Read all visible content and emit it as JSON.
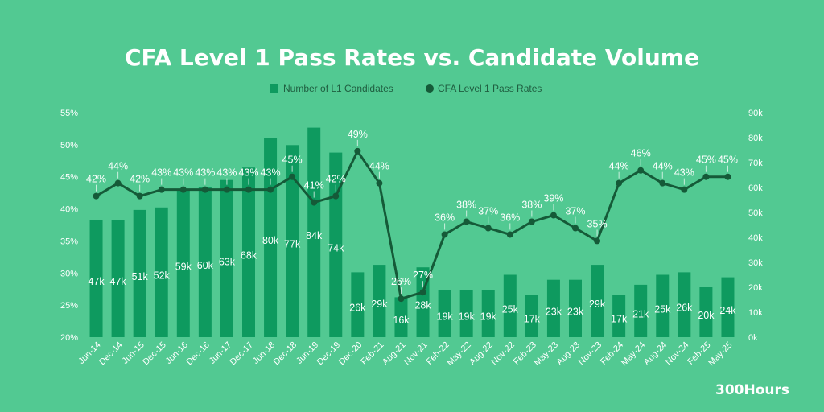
{
  "chart_data": {
    "type": "bar",
    "title": "CFA Level 1 Pass Rates vs. Candidate Volume",
    "categories": [
      "Jun-14",
      "Dec-14",
      "Jun-15",
      "Dec-15",
      "Jun-16",
      "Dec-16",
      "Jun-17",
      "Dec-17",
      "Jun-18",
      "Dec-18",
      "Jun-19",
      "Dec-19",
      "Dec-20",
      "Feb-21",
      "Aug-21",
      "Nov-21",
      "Feb-22",
      "May-22",
      "Aug-22",
      "Nov-22",
      "Feb-23",
      "May-23",
      "Aug-23",
      "Nov-23",
      "Feb-24",
      "May-24",
      "Aug-24",
      "Nov-24",
      "Feb-25",
      "May-25"
    ],
    "series": [
      {
        "name": "Number of L1 Candidates",
        "type": "bar",
        "axis": "right",
        "values": [
          47,
          47,
          51,
          52,
          59,
          60,
          63,
          68,
          80,
          77,
          84,
          74,
          26,
          29,
          16,
          28,
          19,
          19,
          19,
          25,
          17,
          23,
          23,
          29,
          17,
          21,
          25,
          26,
          20,
          24
        ],
        "labels": [
          "47k",
          "47k",
          "51k",
          "52k",
          "59k",
          "60k",
          "63k",
          "68k",
          "80k",
          "77k",
          "84k",
          "74k",
          "26k",
          "29k",
          "16k",
          "28k",
          "19k",
          "19k",
          "19k",
          "25k",
          "17k",
          "23k",
          "23k",
          "29k",
          "17k",
          "21k",
          "25k",
          "26k",
          "20k",
          "24k"
        ]
      },
      {
        "name": "CFA Level 1 Pass Rates",
        "type": "line",
        "axis": "left",
        "values": [
          42,
          44,
          42,
          43,
          43,
          43,
          43,
          43,
          43,
          45,
          41,
          42,
          49,
          44,
          26,
          27,
          36,
          38,
          37,
          36,
          38,
          39,
          37,
          35,
          44,
          46,
          44,
          43,
          45,
          45
        ],
        "labels": [
          "42%",
          "44%",
          "42%",
          "43%",
          "43%",
          "43%",
          "43%",
          "43%",
          "43%",
          "45%",
          "41%",
          "42%",
          "49%",
          "44%",
          "26%",
          "27%",
          "36%",
          "38%",
          "37%",
          "36%",
          "38%",
          "39%",
          "37%",
          "35%",
          "44%",
          "46%",
          "44%",
          "43%",
          "45%",
          "45%"
        ]
      }
    ],
    "y_left": {
      "min": 20,
      "max": 55,
      "ticks": [
        "20%",
        "25%",
        "30%",
        "35%",
        "40%",
        "45%",
        "50%",
        "55%"
      ]
    },
    "y_right": {
      "min": 0,
      "max": 90,
      "ticks": [
        "0k",
        "10k",
        "20k",
        "30k",
        "40k",
        "50k",
        "60k",
        "70k",
        "80k",
        "90k"
      ]
    },
    "grid": false,
    "legend": "top-center"
  },
  "brand": "300Hours",
  "colors": {
    "background": "#52c992",
    "bar": "#0e9a5f",
    "line": "#155a38",
    "text": "#ffffff",
    "legend_text": "#1f5e40"
  }
}
